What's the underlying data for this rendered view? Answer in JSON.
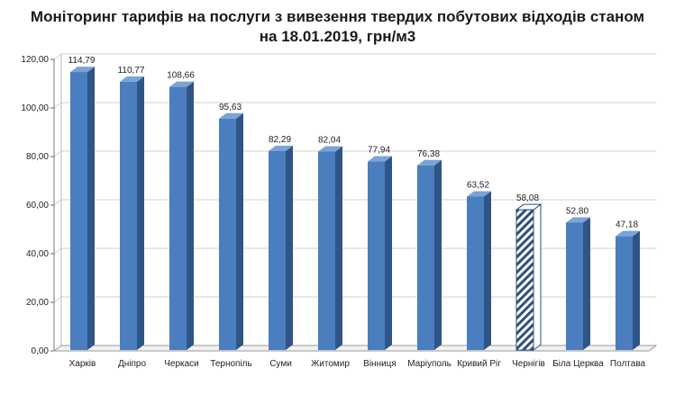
{
  "chart_data": {
    "type": "bar",
    "title_line1": "Моніторинг тарифів на послуги з вивезення твердих побутових відходів станом",
    "title_line2": "на 18.01.2019, грн/м3",
    "categories": [
      "Харків",
      "Дніпро",
      "Черкаси",
      "Тернопіль",
      "Суми",
      "Житомир",
      "Вінниця",
      "Маріуполь",
      "Кривий Ріг",
      "Чернігів",
      "Біла Церква",
      "Полтава"
    ],
    "values": [
      114.79,
      110.77,
      108.66,
      95.63,
      82.29,
      82.04,
      77.94,
      76.38,
      63.52,
      58.08,
      52.8,
      47.18
    ],
    "value_labels": [
      "114,79",
      "110,77",
      "108,66",
      "95,63",
      "82,29",
      "82,04",
      "77,94",
      "76,38",
      "63,52",
      "58,08",
      "52,80",
      "47,18"
    ],
    "highlighted_category": "Чернігів",
    "yticks": [
      0,
      20,
      40,
      60,
      80,
      100,
      120
    ],
    "ytick_labels": [
      "0,00",
      "20,00",
      "40,00",
      "60,00",
      "80,00",
      "100,00",
      "120,00"
    ],
    "ylim": [
      0,
      120
    ],
    "grid": true,
    "xlabel": "",
    "ylabel": "",
    "colors": {
      "bar_front": "#4a7ebf",
      "bar_side": "#2f5587",
      "bar_top": "#7aa3d6",
      "hatch": "#2e4f7a",
      "grid": "#d0d0d0"
    }
  }
}
